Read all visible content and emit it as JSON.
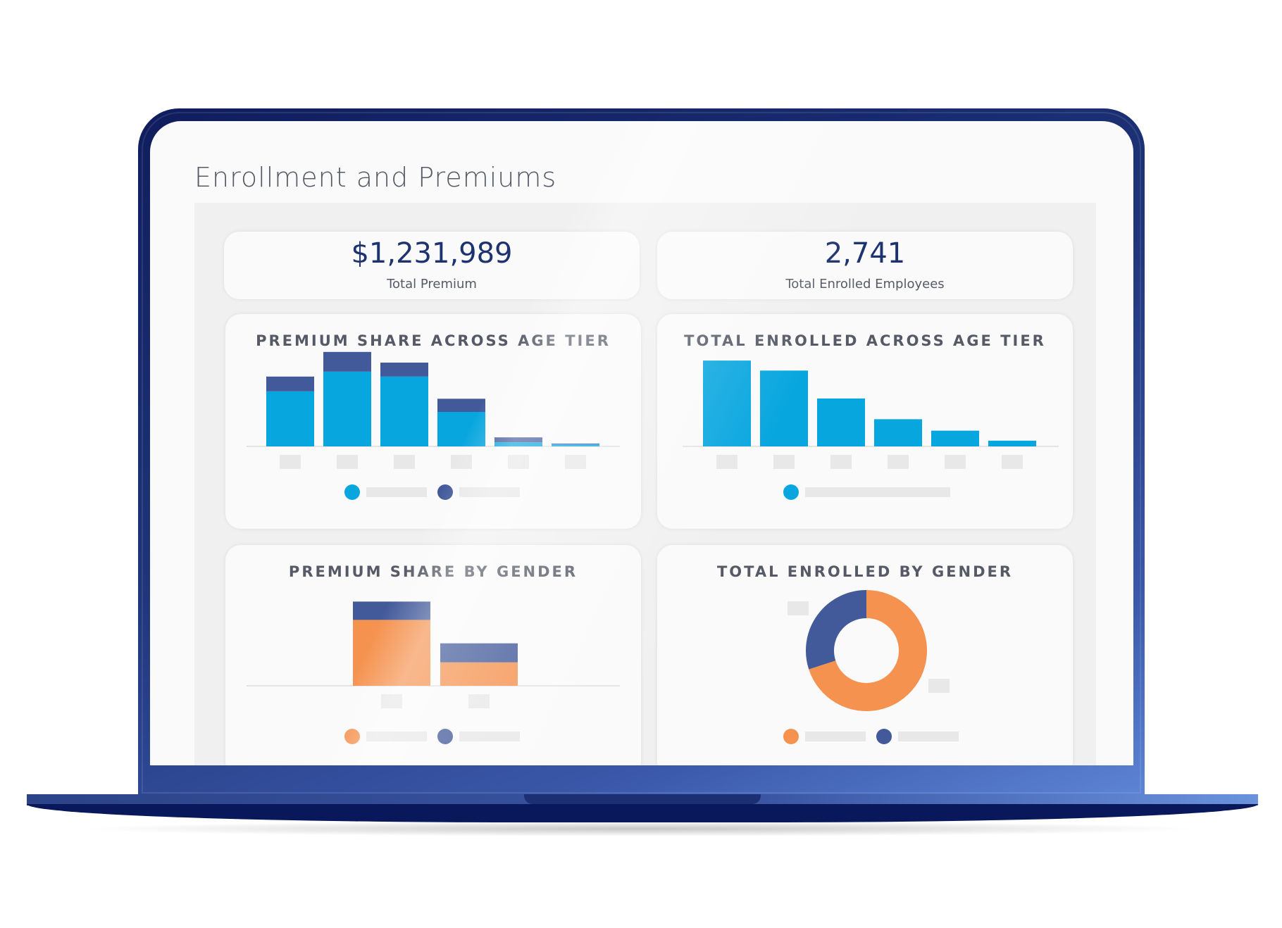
{
  "page": {
    "title": "Enrollment and Premiums"
  },
  "kpis": [
    {
      "value": "$1,231,989",
      "label": "Total Premium"
    },
    {
      "value": "2,741",
      "label": "Total Enrolled Employees"
    }
  ],
  "colors": {
    "blue_primary": "#08a6df",
    "navy_series": "#42599a",
    "orange": "#f5924f",
    "placeholder_gray": "#e8e8e8",
    "kpi_text": "#1d3370"
  },
  "chart_data": [
    {
      "type": "bar",
      "stacked": true,
      "title": "PREMIUM SHARE ACROSS AGE TIER",
      "categories": [
        "",
        "",
        "",
        "",
        "",
        ""
      ],
      "series": [
        {
          "values": [
            67,
            91,
            85,
            42,
            5,
            2.5
          ],
          "color": "#08a6df"
        },
        {
          "values": [
            18,
            24,
            17,
            16,
            6,
            1
          ],
          "color": "#42599a"
        }
      ],
      "ylim": [
        0,
        120
      ],
      "legend": "bottom"
    },
    {
      "type": "bar",
      "title": "TOTAL ENROLLED ACROSS AGE TIER",
      "categories": [
        "",
        "",
        "",
        "",
        "",
        ""
      ],
      "series": [
        {
          "values": [
            120,
            106,
            67,
            38,
            22,
            8
          ],
          "color": "#08a6df"
        }
      ],
      "ylim": [
        0,
        125
      ],
      "legend": "bottom"
    },
    {
      "type": "bar",
      "stacked": true,
      "title": "PREMIUM SHARE BY GENDER",
      "categories": [
        "",
        ""
      ],
      "series": [
        {
          "values": [
            90,
            32
          ],
          "color": "#f5924f"
        },
        {
          "values": [
            25,
            26
          ],
          "color": "#42599a"
        }
      ],
      "ylim": [
        0,
        125
      ],
      "legend": "bottom"
    },
    {
      "type": "pie",
      "donut": true,
      "title": "TOTAL ENROLLED BY GENDER",
      "series": [
        {
          "values": [
            70,
            30
          ],
          "colors": [
            "#f5924f",
            "#42599a"
          ]
        }
      ],
      "legend": "bottom"
    }
  ]
}
